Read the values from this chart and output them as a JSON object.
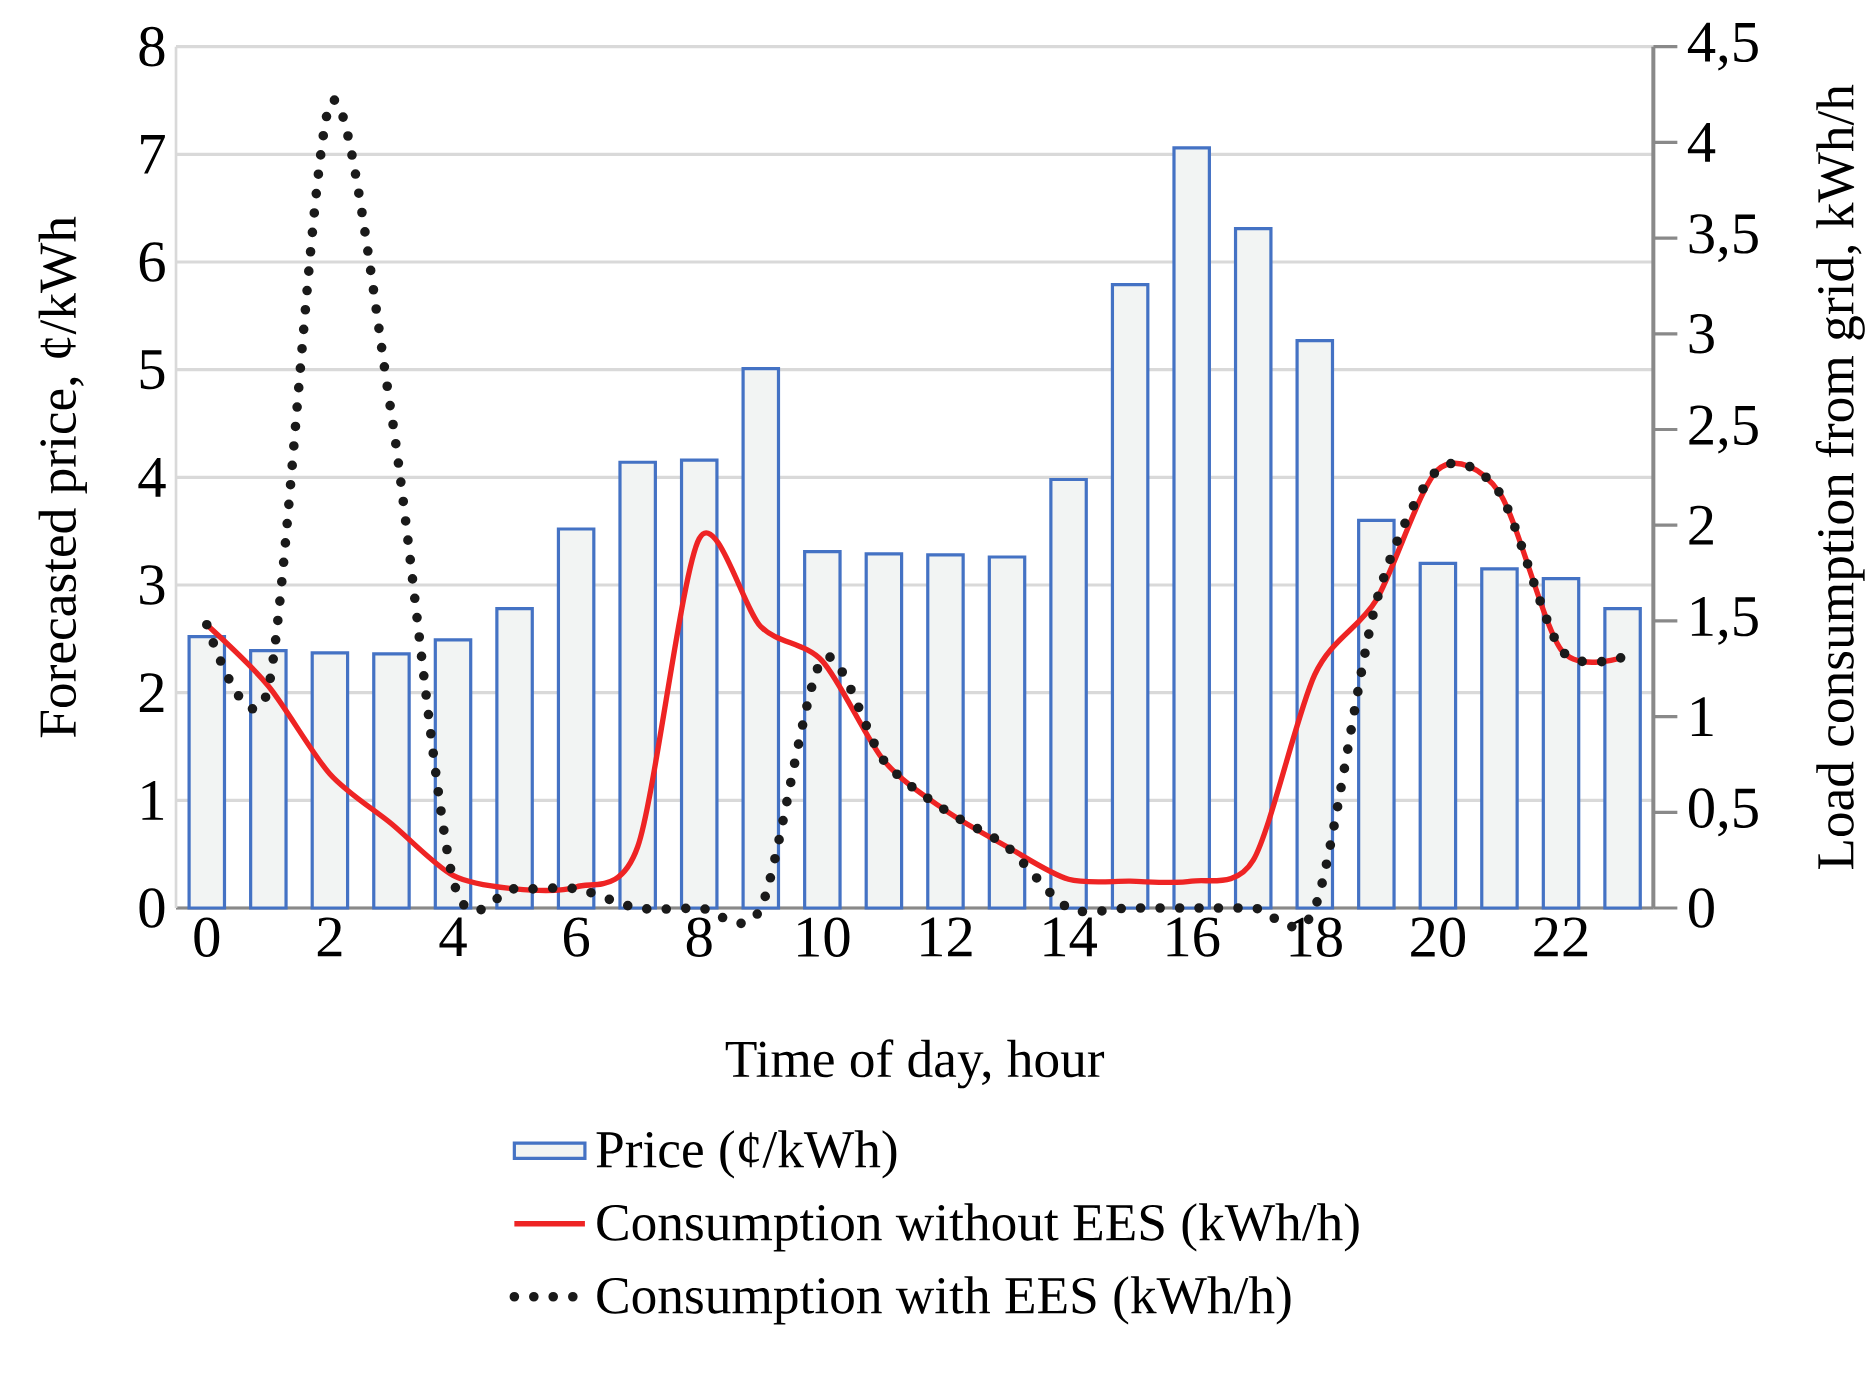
{
  "chart_data": {
    "type": "bar",
    "xlabel": "Time of day, hour",
    "ylabel": "Forecasted price, ¢/kWh",
    "y2label": "Load consumption from grid, kWh/h",
    "x": [
      0,
      1,
      2,
      3,
      4,
      5,
      6,
      7,
      8,
      9,
      10,
      11,
      12,
      13,
      14,
      15,
      16,
      17,
      18,
      19,
      20,
      21,
      22,
      23
    ],
    "xlim": [
      -0.5,
      23.5
    ],
    "xticks": [
      0,
      2,
      4,
      6,
      8,
      10,
      12,
      14,
      16,
      18,
      20,
      22
    ],
    "ylim": [
      0,
      8
    ],
    "yticks": [
      0,
      1,
      2,
      3,
      4,
      5,
      6,
      7,
      8
    ],
    "y2lim": [
      0,
      4.5
    ],
    "y2ticks": [
      0,
      {
        "value": 0.5,
        "label": "0,5"
      },
      1,
      {
        "value": 1.5,
        "label": "1,5"
      },
      2,
      {
        "value": 2.5,
        "label": "2,5"
      },
      3,
      {
        "value": 3.5,
        "label": "3,5"
      },
      4,
      {
        "value": 4.5,
        "label": "4,5"
      }
    ],
    "grid": "y",
    "legend": "bottom",
    "series": [
      {
        "name": "Price (¢/kWh)",
        "color": "#4472c4",
        "values": [
          2.52,
          2.39,
          2.37,
          2.36,
          2.49,
          2.78,
          3.52,
          4.14,
          4.16,
          5.01,
          3.31,
          3.29,
          3.28,
          3.26,
          3.98,
          5.79,
          7.06,
          6.31,
          5.27,
          3.6,
          3.2,
          3.15,
          3.06,
          2.78
        ]
      },
      {
        "name": "Consumption without EES (kWh/h)",
        "type": "line",
        "axis": "y2",
        "color": "#ee2424",
        "line_style": "solid",
        "values": [
          1.48,
          1.16,
          0.7,
          0.44,
          0.17,
          0.1,
          0.11,
          0.32,
          1.93,
          1.47,
          1.29,
          0.77,
          0.51,
          0.32,
          0.15,
          0.14,
          0.14,
          0.25,
          1.22,
          1.61,
          2.29,
          2.17,
          1.35,
          1.31
        ]
      },
      {
        "name": "Consumption with EES (kWh/h)",
        "type": "line",
        "axis": "y2",
        "color": "#1a1a1a",
        "line_style": "dotted",
        "values": [
          1.48,
          1.15,
          4.2,
          2.58,
          0.15,
          0.1,
          0.1,
          0,
          0,
          0,
          1.3,
          0.77,
          0.51,
          0.32,
          0,
          0,
          0,
          0,
          0,
          1.6,
          2.29,
          2.17,
          1.35,
          1.31
        ]
      }
    ]
  }
}
